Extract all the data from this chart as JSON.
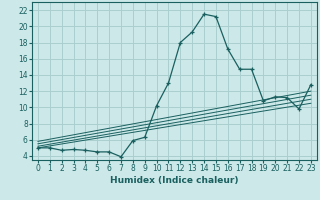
{
  "xlabel": "Humidex (Indice chaleur)",
  "ylabel": "",
  "bg_color": "#cce8e8",
  "grid_color": "#aacece",
  "line_color": "#1a6060",
  "xlim": [
    -0.5,
    23.5
  ],
  "ylim": [
    3.5,
    23.0
  ],
  "xticks": [
    0,
    1,
    2,
    3,
    4,
    5,
    6,
    7,
    8,
    9,
    10,
    11,
    12,
    13,
    14,
    15,
    16,
    17,
    18,
    19,
    20,
    21,
    22,
    23
  ],
  "yticks": [
    4,
    6,
    8,
    10,
    12,
    14,
    16,
    18,
    20,
    22
  ],
  "main_x": [
    0,
    1,
    2,
    3,
    4,
    5,
    6,
    7,
    8,
    9,
    10,
    11,
    12,
    13,
    14,
    15,
    16,
    17,
    18,
    19,
    20,
    21,
    22,
    23
  ],
  "main_y": [
    5.0,
    5.0,
    4.7,
    4.8,
    4.7,
    4.5,
    4.5,
    3.9,
    5.9,
    6.3,
    10.2,
    13.0,
    18.0,
    19.3,
    21.5,
    21.2,
    17.2,
    14.7,
    14.7,
    10.8,
    11.3,
    11.2,
    9.8,
    12.8
  ],
  "ref_lines": [
    {
      "x": [
        0,
        23
      ],
      "y": [
        5.0,
        10.5
      ]
    },
    {
      "x": [
        0,
        23
      ],
      "y": [
        5.2,
        11.0
      ]
    },
    {
      "x": [
        0,
        23
      ],
      "y": [
        5.5,
        11.5
      ]
    },
    {
      "x": [
        0,
        23
      ],
      "y": [
        5.8,
        12.0
      ]
    }
  ]
}
